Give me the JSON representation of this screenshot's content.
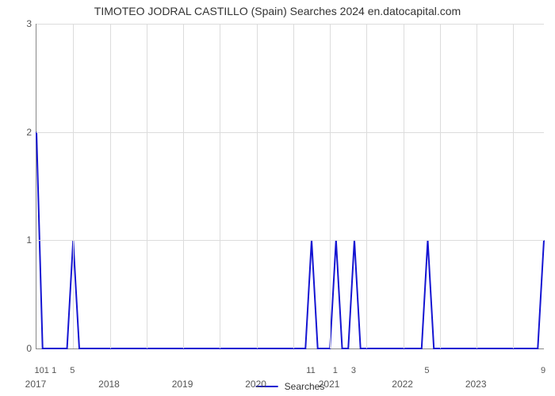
{
  "chart": {
    "type": "line",
    "title": "TIMOTEO JODRAL CASTILLO (Spain) Searches 2024 en.datocapital.com",
    "title_fontsize": 14,
    "title_color": "#333333",
    "background_color": "#ffffff",
    "grid_color": "#dcdcdc",
    "axis_color": "#888888",
    "line_color": "#1414d2",
    "line_width": 2,
    "xlim": [
      0,
      83
    ],
    "ylim": [
      0,
      3
    ],
    "yticks": [
      0,
      1,
      2,
      3
    ],
    "xticks_years": [
      {
        "x": 0,
        "label": "2017"
      },
      {
        "x": 12,
        "label": "2018"
      },
      {
        "x": 24,
        "label": "2019"
      },
      {
        "x": 36,
        "label": "2020"
      },
      {
        "x": 48,
        "label": "2021"
      },
      {
        "x": 60,
        "label": "2022"
      },
      {
        "x": 72,
        "label": "2023"
      }
    ],
    "xticks_small": [
      {
        "x": 1,
        "label": "101"
      },
      {
        "x": 3,
        "label": "1"
      },
      {
        "x": 6,
        "label": "5"
      },
      {
        "x": 45,
        "label": "11"
      },
      {
        "x": 49,
        "label": "1"
      },
      {
        "x": 52,
        "label": "3"
      },
      {
        "x": 64,
        "label": "5"
      },
      {
        "x": 83,
        "label": "9"
      }
    ],
    "gridlines_v_x": [
      6,
      12,
      18,
      24,
      30,
      36,
      42,
      48,
      54,
      60,
      66,
      72,
      78
    ],
    "series": {
      "name": "Searches",
      "points": [
        {
          "x": 0,
          "y": 2
        },
        {
          "x": 1,
          "y": 0
        },
        {
          "x": 2,
          "y": 0
        },
        {
          "x": 5,
          "y": 0
        },
        {
          "x": 6,
          "y": 1
        },
        {
          "x": 7,
          "y": 0
        },
        {
          "x": 44,
          "y": 0
        },
        {
          "x": 45,
          "y": 1
        },
        {
          "x": 46,
          "y": 0
        },
        {
          "x": 48,
          "y": 0
        },
        {
          "x": 49,
          "y": 1
        },
        {
          "x": 50,
          "y": 0
        },
        {
          "x": 51,
          "y": 0
        },
        {
          "x": 52,
          "y": 1
        },
        {
          "x": 53,
          "y": 0
        },
        {
          "x": 63,
          "y": 0
        },
        {
          "x": 64,
          "y": 1
        },
        {
          "x": 65,
          "y": 0
        },
        {
          "x": 82,
          "y": 0
        },
        {
          "x": 83,
          "y": 1
        }
      ]
    },
    "legend": {
      "label": "Searches",
      "line_color": "#1414d2"
    }
  }
}
